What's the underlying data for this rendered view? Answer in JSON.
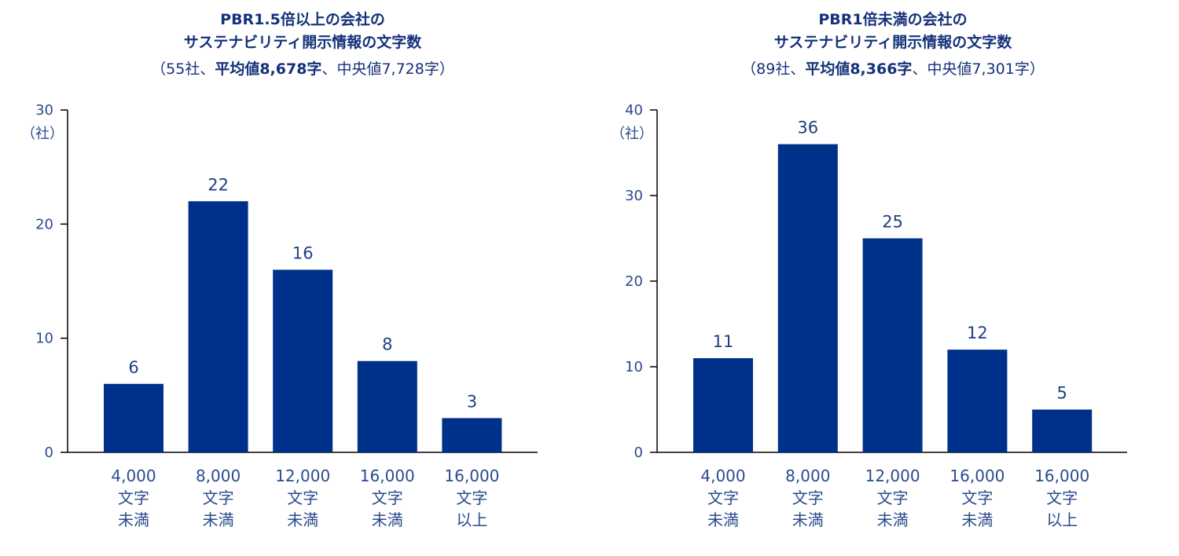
{
  "colors": {
    "bar": "#00318a",
    "text": "#14317a",
    "axis": "#000000"
  },
  "chart_data": [
    {
      "type": "bar",
      "title_lines": [
        "PBR1.5倍以上の会社の",
        "サステナビリティ開示情報の文字数"
      ],
      "subtitle_parts": [
        {
          "text": "（55社、",
          "bold": false
        },
        {
          "text": "平均値8,678字",
          "bold": true
        },
        {
          "text": "、中央値7,728字）",
          "bold": false
        }
      ],
      "categories": [
        [
          "4,000",
          "文字",
          "未満"
        ],
        [
          "8,000",
          "文字",
          "未満"
        ],
        [
          "12,000",
          "文字",
          "未満"
        ],
        [
          "16,000",
          "文字",
          "未満"
        ],
        [
          "16,000",
          "文字",
          "以上"
        ]
      ],
      "values": [
        6,
        22,
        16,
        8,
        3
      ],
      "ylim": [
        0,
        30
      ],
      "yticks": [
        0,
        10,
        20,
        30
      ],
      "yunit": "（社）",
      "xlabel": "",
      "ylabel": "社"
    },
    {
      "type": "bar",
      "title_lines": [
        "PBR1倍未満の会社の",
        "サステナビリティ開示情報の文字数"
      ],
      "subtitle_parts": [
        {
          "text": "（89社、",
          "bold": false
        },
        {
          "text": "平均値8,366字",
          "bold": true
        },
        {
          "text": "、中央値7,301字）",
          "bold": false
        }
      ],
      "categories": [
        [
          "4,000",
          "文字",
          "未満"
        ],
        [
          "8,000",
          "文字",
          "未満"
        ],
        [
          "12,000",
          "文字",
          "未満"
        ],
        [
          "16,000",
          "文字",
          "未満"
        ],
        [
          "16,000",
          "文字",
          "以上"
        ]
      ],
      "values": [
        11,
        36,
        25,
        12,
        5
      ],
      "ylim": [
        0,
        40
      ],
      "yticks": [
        0,
        10,
        20,
        30,
        40
      ],
      "yunit": "（社）",
      "xlabel": "",
      "ylabel": "社"
    }
  ]
}
